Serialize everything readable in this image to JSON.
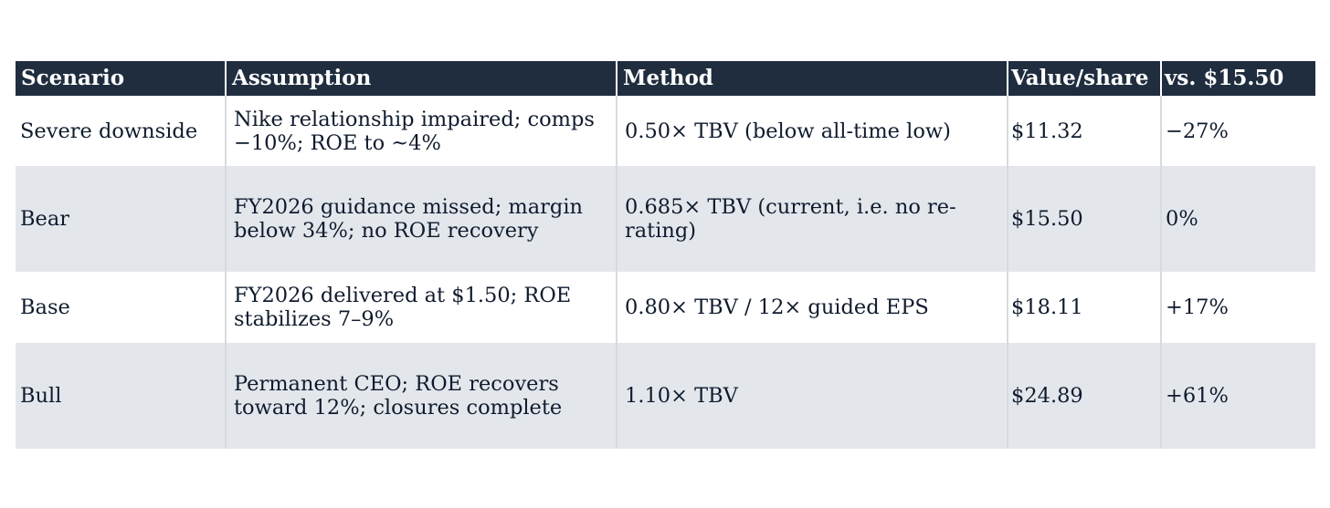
{
  "table": {
    "headers": [
      "Scenario",
      "Assumption",
      "Method",
      "Value/share",
      "vs. $15.50"
    ],
    "rows": [
      {
        "scenario": "Severe downside",
        "assumption": "Nike relationship impaired; comps −10%; ROE to ~4%",
        "method": "0.50× TBV (below all-time low)",
        "value": "$11.32",
        "change": "−27%"
      },
      {
        "scenario": "Bear",
        "assumption": "FY2026 guidance missed; margin below 34%; no ROE recovery",
        "method": "0.685× TBV (current, i.e. no re-rating)",
        "value": "$15.50",
        "change": "0%"
      },
      {
        "scenario": "Base",
        "assumption": "FY2026 delivered at $1.50; ROE stabilizes 7–9%",
        "method": "0.80× TBV / 12× guided EPS",
        "value": "$18.11",
        "change": "+17%"
      },
      {
        "scenario": "Bull",
        "assumption": "Permanent CEO; ROE recovers toward 12%; closures complete",
        "method": "1.10× TBV",
        "value": "$24.89",
        "change": "+61%"
      }
    ]
  },
  "colors": {
    "header_bg": "#1f2d3f",
    "header_text": "#ffffff",
    "row_alt_bg": "#e3e7ec",
    "body_text": "#0f1b2d"
  }
}
